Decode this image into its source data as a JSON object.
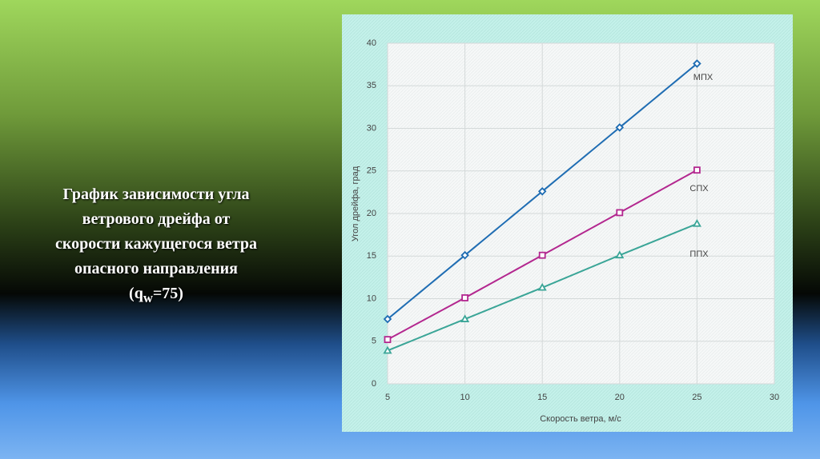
{
  "title_lines": [
    "График зависимости угла",
    "ветрового дрейфа от",
    "скорости кажущегося ветра",
    "опасного направления"
  ],
  "title_formula": {
    "prefix": "(q",
    "subscript": "w",
    "suffix": "=75)"
  },
  "chart_data": {
    "type": "line",
    "x_label": "Скорость ветра, м/с",
    "y_label": "Угол дрейфа, град",
    "x": [
      5,
      10,
      15,
      20,
      25
    ],
    "xlim": [
      5,
      30
    ],
    "xticks": [
      5,
      10,
      15,
      20,
      25,
      30
    ],
    "ylim": [
      0,
      40
    ],
    "yticks": [
      0,
      5,
      10,
      15,
      20,
      25,
      30,
      35,
      40
    ],
    "grid": true,
    "series": [
      {
        "name": "МПХ",
        "color": "#1f6db3",
        "marker": "diamond",
        "values": [
          7.6,
          15.1,
          22.6,
          30.1,
          37.6
        ]
      },
      {
        "name": "СПХ",
        "color": "#b3278f",
        "marker": "square",
        "values": [
          5.2,
          10.1,
          15.1,
          20.1,
          25.1
        ]
      },
      {
        "name": "ППХ",
        "color": "#3aa597",
        "marker": "triangle",
        "values": [
          3.9,
          7.6,
          11.3,
          15.1,
          18.8
        ]
      }
    ]
  }
}
